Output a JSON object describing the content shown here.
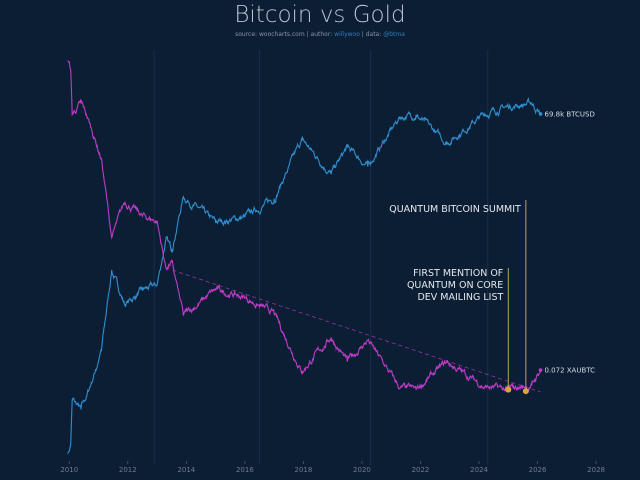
{
  "chart_data": {
    "type": "line",
    "title": "Bitcoin vs Gold",
    "subtitle": {
      "source_label": "source:",
      "source": "woocharts.com",
      "author_label": "author:",
      "author": "willywoo",
      "data_label": "data:",
      "data": "@btma"
    },
    "x_scale": "time (years)",
    "y_scale": "log",
    "xlim": [
      2009,
      2029.5
    ],
    "x_ticks": [
      "2010",
      "2012",
      "2014",
      "2016",
      "2018",
      "2020",
      "2022",
      "2024",
      "2026",
      "2028"
    ],
    "grid": "faint vertical lines at halving dates",
    "halvings": [
      2012.9,
      2016.5,
      2020.3,
      2024.3
    ],
    "series": [
      {
        "name": "BTCUSD",
        "color": "#2f8fcf",
        "ylim": [
          0.0016,
          1720000
        ],
        "end_label": "69.8k BTCUSD",
        "x": [
          2009.95,
          2010.05,
          2010.1,
          2010.4,
          2010.6,
          2010.9,
          2011.1,
          2011.45,
          2011.9,
          2012.5,
          2013.0,
          2013.3,
          2013.5,
          2013.9,
          2015.0,
          2016.0,
          2017.0,
          2017.95,
          2018.95,
          2019.5,
          2020.2,
          2021.3,
          2021.85,
          2022.9,
          2024.2,
          2024.95,
          2025.8,
          2026.1
        ],
        "y": [
          0.0028,
          0.0044,
          0.042,
          0.026,
          0.05,
          0.19,
          0.5,
          28,
          5,
          10,
          13,
          130,
          77,
          1100,
          300,
          400,
          1000,
          19000,
          3500,
          13000,
          5000,
          60000,
          67000,
          16500,
          70000,
          100000,
          120000,
          69800
        ]
      },
      {
        "name": "XAUBTC",
        "color": "#c03cc8",
        "ylim": [
          0.00062,
          660000
        ],
        "end_label": "0.072 XAUBTC",
        "x": [
          2009.95,
          2010.05,
          2010.1,
          2010.4,
          2010.6,
          2010.9,
          2011.1,
          2011.45,
          2011.9,
          2012.5,
          2013.0,
          2013.3,
          2013.5,
          2013.9,
          2015.0,
          2016.0,
          2017.0,
          2017.95,
          2018.95,
          2019.5,
          2020.2,
          2021.3,
          2021.85,
          2022.9,
          2024.2,
          2024.95,
          2025.8,
          2026.1
        ],
        "y": [
          393000,
          250000,
          26000,
          45000,
          24000,
          7000,
          2800,
          55,
          330,
          160,
          125,
          12,
          16,
          1.1,
          4,
          2.7,
          1.2,
          0.068,
          0.37,
          0.11,
          0.32,
          0.029,
          0.027,
          0.106,
          0.031,
          0.027,
          0.033,
          0.072
        ]
      }
    ],
    "trendline": {
      "series": "XAUBTC",
      "color": "#c03cc8",
      "style": "dashed",
      "from": [
        2013.3,
        12
      ],
      "to": [
        2026.1,
        0.024
      ]
    },
    "annotations": [
      {
        "id": "first-mention",
        "x": 2025.0,
        "y": 0.027,
        "lines": [
          "FIRST MENTION OF",
          "QUANTUM ON CORE",
          "DEV MAILING LIST"
        ],
        "color": "#d9a441"
      },
      {
        "id": "summit",
        "x": 2025.6,
        "y": 0.025,
        "lines": [
          "QUANTUM BITCOIN SUMMIT"
        ],
        "color": "#d9a441"
      }
    ],
    "background": "#0c1e33"
  }
}
